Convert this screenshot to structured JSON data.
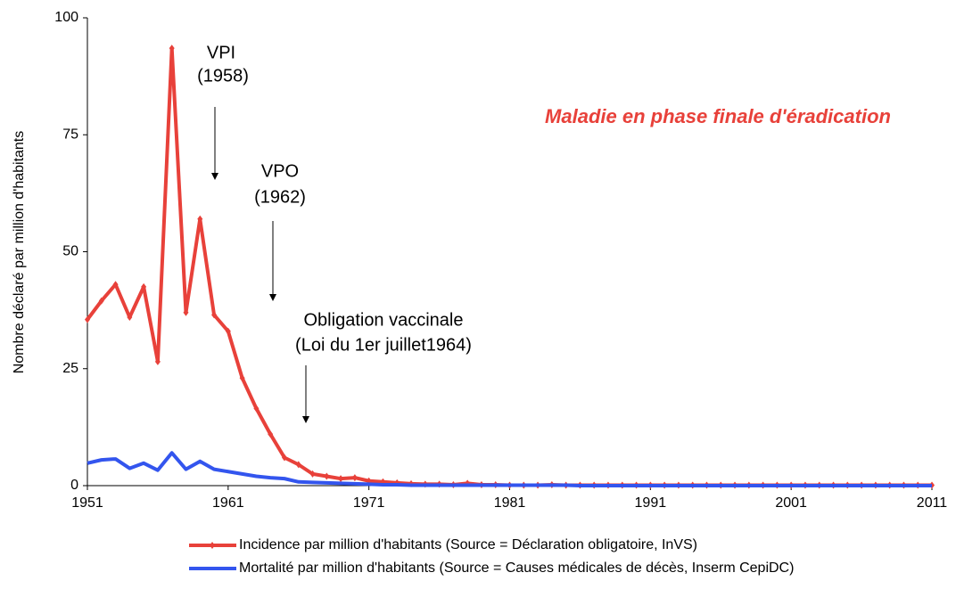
{
  "chart_data": {
    "type": "line",
    "y_label": "Nombre déclaré par million d'habitants",
    "annotations": [
      "VPI",
      "(1958)",
      "VPO",
      "(1962)",
      "Obligation vaccinale",
      "(Loi du 1er juillet1964)",
      "Maladie en phase finale d'éradication"
    ],
    "x": [
      1951,
      1952,
      1953,
      1954,
      1955,
      1956,
      1957,
      1958,
      1959,
      1960,
      1961,
      1962,
      1963,
      1964,
      1965,
      1966,
      1967,
      1968,
      1969,
      1970,
      1971,
      1972,
      1973,
      1974,
      1975,
      1976,
      1977,
      1978,
      1979,
      1980,
      1981,
      1982,
      1983,
      1984,
      1985,
      1986,
      1987,
      1988,
      1989,
      1990,
      1991,
      1992,
      1993,
      1994,
      1995,
      1996,
      1997,
      1998,
      1999,
      2000,
      2001,
      2002,
      2003,
      2004,
      2005,
      2006,
      2007,
      2008,
      2009,
      2010,
      2011
    ],
    "series": [
      {
        "name": "Incidence par million d'habitants (Source = Déclaration obligatoire, InVS)",
        "color": "#e8413a",
        "markers": true,
        "values": [
          35.5,
          39.5,
          43,
          36,
          42.5,
          26.5,
          93.5,
          37,
          57,
          36.5,
          33,
          23,
          16.5,
          11,
          6,
          4.5,
          2.5,
          2,
          1.5,
          1.7,
          1,
          0.8,
          0.6,
          0.4,
          0.3,
          0.3,
          0.2,
          0.5,
          0.2,
          0.2,
          0.1,
          0.1,
          0.1,
          0.2,
          0.1,
          0.1,
          0.1,
          0.1,
          0.1,
          0.1,
          0.1,
          0.1,
          0.1,
          0.1,
          0.1,
          0.1,
          0.1,
          0.1,
          0.1,
          0.1,
          0.1,
          0.1,
          0.1,
          0.1,
          0.1,
          0.1,
          0.1,
          0.1,
          0.1,
          0.1,
          0.1
        ]
      },
      {
        "name": "Mortalité par million d'habitants  (Source = Causes médicales de décès, Inserm CepiDC)",
        "color": "#3355ee",
        "markers": false,
        "values": [
          4.8,
          5.5,
          5.7,
          3.7,
          4.8,
          3.3,
          7,
          3.5,
          5.2,
          3.5,
          3,
          2.5,
          2,
          1.7,
          1.5,
          0.8,
          0.7,
          0.6,
          0.5,
          0.4,
          0.3,
          0.2,
          0.2,
          0.1,
          0.1,
          0.1,
          0.1,
          0.1,
          0.1,
          0.1,
          0.1,
          0.1,
          0.1,
          0.1,
          0.1,
          0,
          0,
          0,
          0,
          0,
          0,
          0,
          0,
          0,
          0,
          0,
          0,
          0,
          0,
          0,
          0,
          0,
          0,
          0,
          0,
          0,
          0,
          0,
          0,
          0,
          0
        ]
      }
    ],
    "xlim": [
      1951,
      2011
    ],
    "xticks": [
      1951,
      1961,
      1971,
      1981,
      1991,
      2001,
      2011
    ],
    "ylim": [
      0,
      100
    ],
    "yticks": [
      0,
      25,
      50,
      75,
      100
    ],
    "grid": false
  }
}
